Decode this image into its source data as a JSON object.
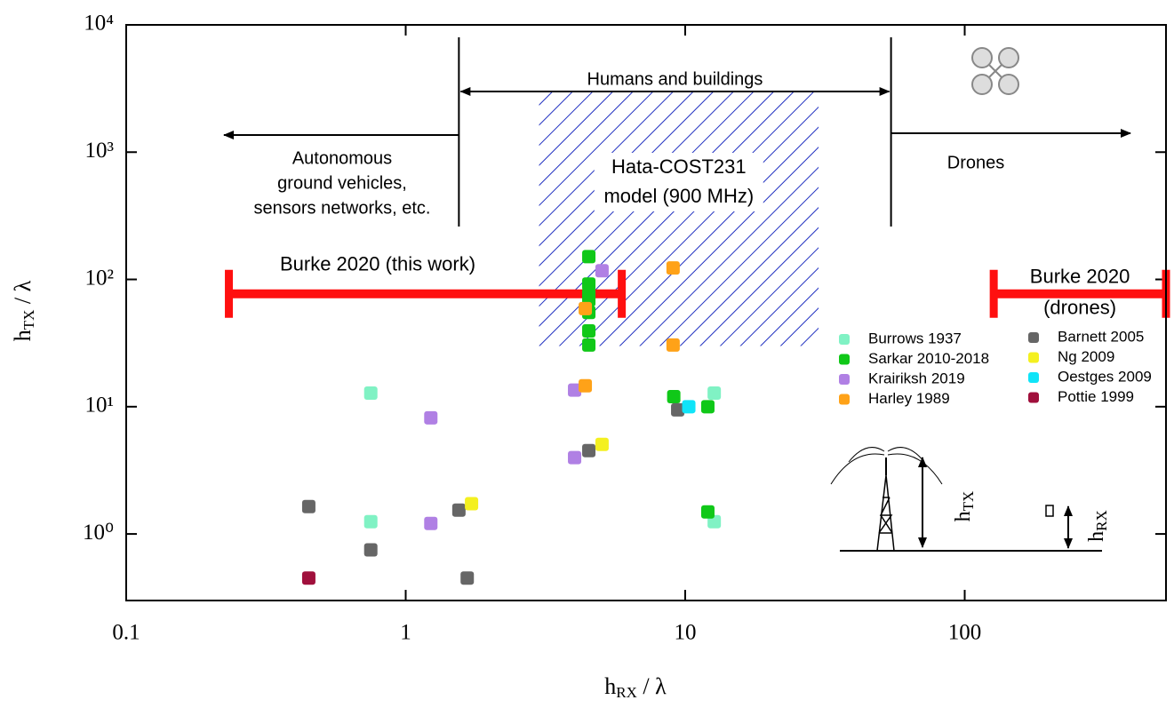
{
  "chart_data": {
    "type": "scatter",
    "xlim": [
      0.1,
      525
    ],
    "ylim": [
      0.3,
      10000
    ],
    "xscale": "log",
    "yscale": "log",
    "xticks": [
      0.1,
      1,
      10,
      100
    ],
    "yticks": [
      {
        "value": 1,
        "label": "10⁰"
      },
      {
        "value": 10,
        "label": "10¹"
      },
      {
        "value": 100,
        "label": "10²"
      },
      {
        "value": 1000,
        "label": "10³"
      },
      {
        "value": 10000,
        "label": "10⁴"
      }
    ],
    "xlabel": {
      "symbol": "h",
      "subscript": "RX",
      "suffix": " / λ"
    },
    "ylabel": {
      "symbol": "h",
      "subscript": "TX",
      "suffix": " / λ"
    },
    "legend": "upper right",
    "series": [
      {
        "name": "Burrows 1937",
        "color": "#80f2c4",
        "x": [
          0.75,
          0.75,
          12.7,
          12.7
        ],
        "values": [
          12.8,
          1.25,
          12.8,
          1.25
        ]
      },
      {
        "name": "Sarkar 2010-2018",
        "color": "#10c818",
        "x": [
          4.52,
          4.52,
          4.52,
          4.52,
          4.52,
          4.52,
          4.52,
          9.1,
          12.05,
          12.05
        ],
        "values": [
          151,
          92,
          76,
          69,
          55,
          39.4,
          30.5,
          12,
          10,
          1.49
        ]
      },
      {
        "name": "Krairiksh 2019",
        "color": "#b080e4",
        "x": [
          5.04,
          4.02,
          1.23,
          4.02,
          1.23
        ],
        "values": [
          117,
          13.5,
          8.18,
          3.98,
          1.21
        ]
      },
      {
        "name": "Harley 1989",
        "color": "#ffa218",
        "x": [
          9.05,
          4.39,
          9.05,
          4.39
        ],
        "values": [
          123,
          59,
          30.5,
          14.6
        ]
      },
      {
        "name": "Barnett 2005",
        "color": "#666666",
        "x": [
          0.45,
          0.75,
          1.55,
          1.66,
          4.52,
          9.4
        ],
        "values": [
          1.64,
          0.75,
          1.54,
          0.45,
          4.52,
          9.45
        ]
      },
      {
        "name": "Ng 2009",
        "color": "#f4f020",
        "x": [
          1.72,
          5.04
        ],
        "values": [
          1.73,
          5.06
        ]
      },
      {
        "name": "Oestges 2009",
        "color": "#10e4f8",
        "x": [
          10.3
        ],
        "values": [
          10
        ]
      },
      {
        "name": "Pottie 1999",
        "color": "#a0103c",
        "x": [
          0.45
        ],
        "values": [
          0.45
        ]
      }
    ],
    "ranges": [
      {
        "label": [
          "Burke 2020 (this work)"
        ],
        "color": "#ff1010",
        "x": [
          0.233,
          5.93
        ],
        "y": 77
      },
      {
        "label": [
          "Burke 2020",
          "(drones)"
        ],
        "color": "#ff1010",
        "x": [
          127,
          525
        ],
        "y": 77
      }
    ],
    "hatched_region": {
      "label": [
        "Hata-COST231",
        "model (900 MHz)"
      ],
      "color": "#2030c0",
      "x": [
        3,
        30
      ],
      "y": [
        30,
        3000
      ]
    },
    "region_bounds": [
      1.55,
      54.5
    ],
    "annotations": {
      "ground": [
        "Autonomous",
        "ground vehicles,",
        "sensors networks, etc."
      ],
      "humans": "Humans and buildings",
      "drones": "Drones"
    },
    "inset": {
      "tx": {
        "symbol": "h",
        "subscript": "TX"
      },
      "rx": {
        "symbol": "h",
        "subscript": "RX"
      }
    }
  }
}
